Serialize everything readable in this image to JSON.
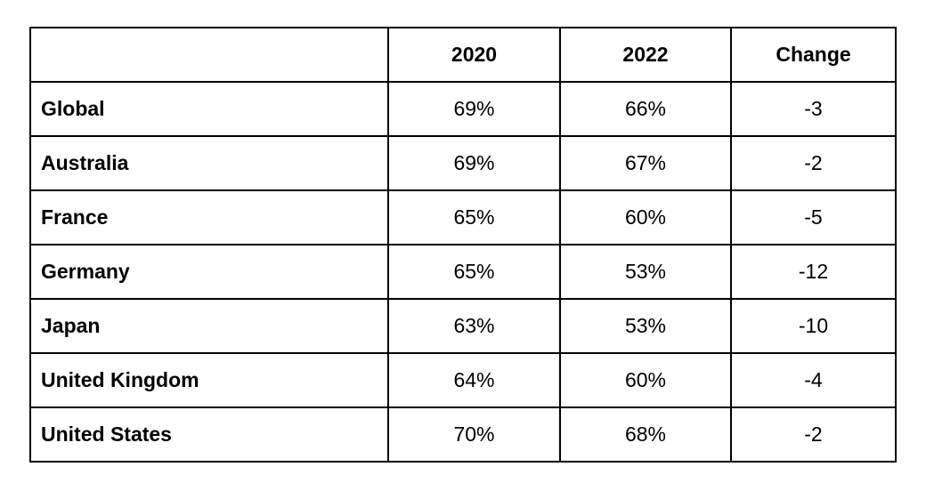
{
  "chart_data": {
    "type": "table",
    "title": "",
    "columns": [
      "",
      "2020",
      "2022",
      "Change"
    ],
    "rows": [
      [
        "Global",
        "69%",
        "66%",
        "-3"
      ],
      [
        "Australia",
        "69%",
        "67%",
        "-2"
      ],
      [
        "France",
        "65%",
        "60%",
        "-5"
      ],
      [
        "Germany",
        "65%",
        "53%",
        "-12"
      ],
      [
        "Japan",
        "63%",
        "53%",
        "-10"
      ],
      [
        "United Kingdom",
        "64%",
        "60%",
        "-4"
      ],
      [
        "United States",
        "70%",
        "68%",
        "-2"
      ]
    ],
    "layout": {
      "border_color": "#000000",
      "background_color": "#ffffff",
      "header_bold": true,
      "row_labels_bold": true,
      "values_alignment": "center"
    }
  }
}
